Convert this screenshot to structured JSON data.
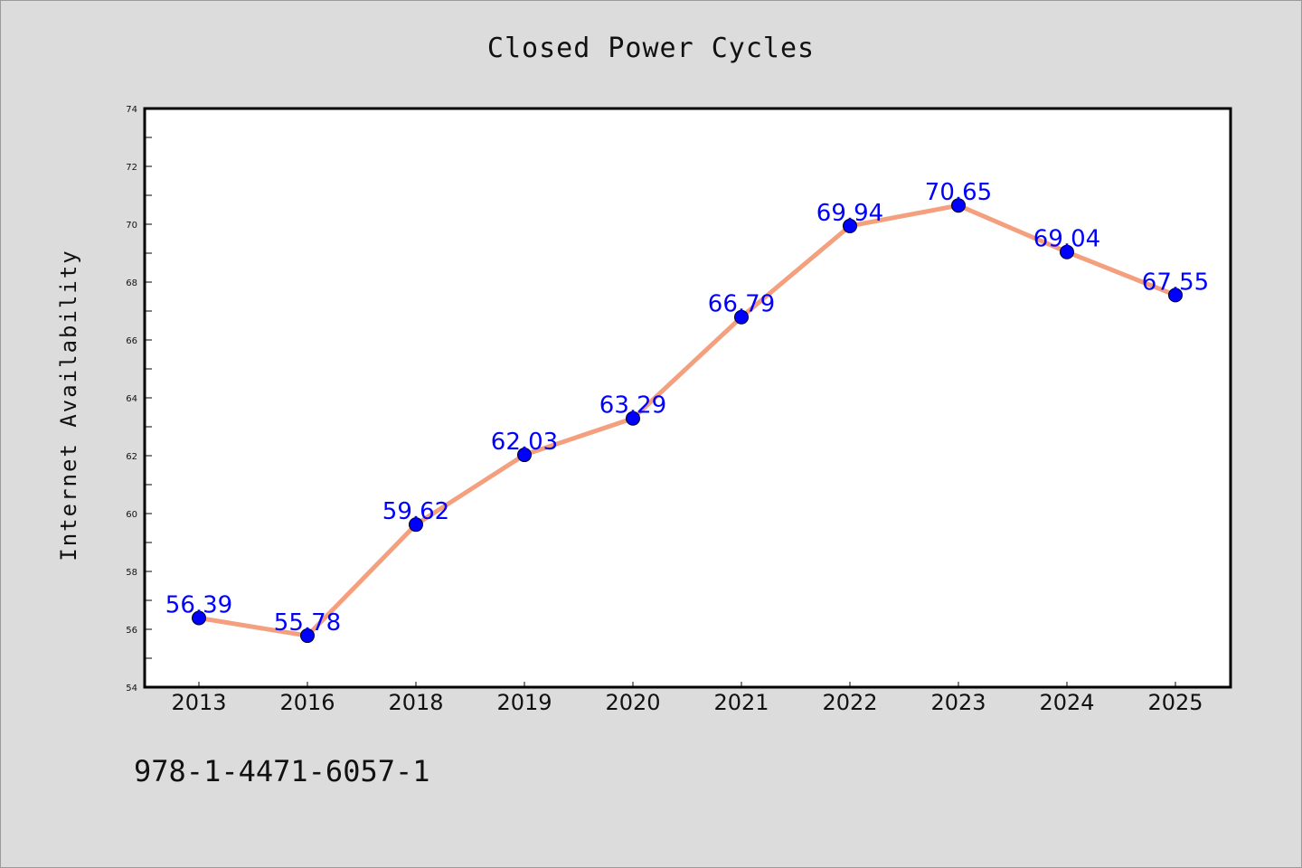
{
  "chart_data": {
    "type": "line",
    "title": "Closed Power Cycles",
    "xlabel": "",
    "ylabel": "Internet Availability",
    "categories": [
      "2013",
      "2016",
      "2018",
      "2019",
      "2020",
      "2021",
      "2022",
      "2023",
      "2024",
      "2025"
    ],
    "series": [
      {
        "values": [
          56.39,
          55.78,
          59.62,
          62.03,
          63.29,
          66.79,
          69.94,
          70.65,
          69.04,
          67.55
        ],
        "labels": [
          "56.39",
          "55.78",
          "59.62",
          "62.03",
          "63.29",
          "66.79",
          "69.94",
          "70.65",
          "69.04",
          "67.55"
        ],
        "line_color": "#f4a07f",
        "marker_color": "#0000ff"
      }
    ],
    "ylim": [
      54,
      74
    ],
    "yticks": [
      "54",
      "56",
      "58",
      "60",
      "62",
      "64",
      "66",
      "68",
      "70",
      "72",
      "74"
    ],
    "grid": false,
    "legend": "none"
  },
  "footer": {
    "code": "978-1-4471-6057-1"
  }
}
